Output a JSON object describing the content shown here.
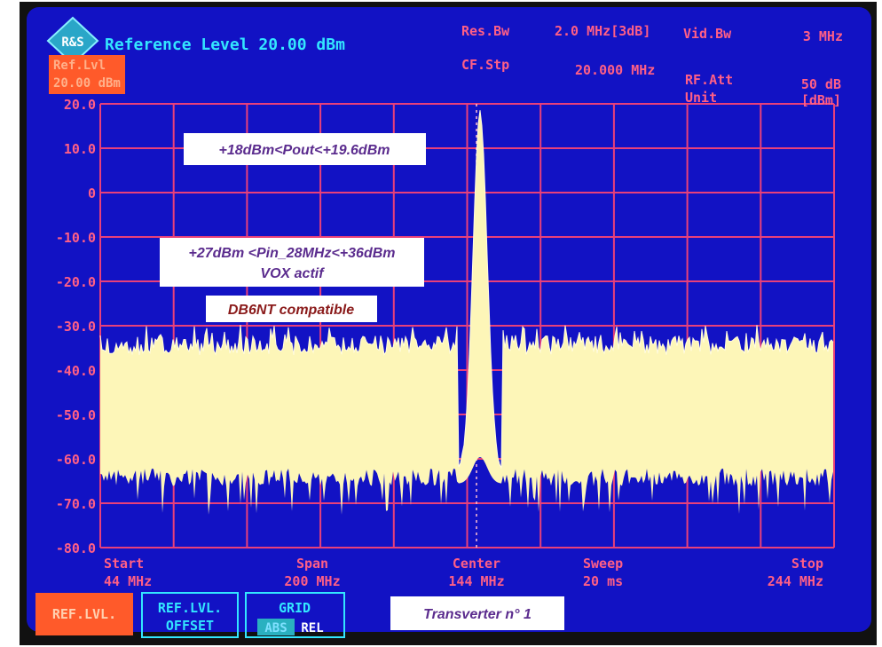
{
  "header": {
    "reference_level": "Reference Level 20.00 dBm",
    "ref_lvl_box": [
      "Ref.Lvl",
      "20.00 dBm"
    ],
    "settings": [
      {
        "label": "Res.Bw",
        "value": "2.0 MHz[3dB]"
      },
      {
        "label": "Vid.Bw",
        "value": "3 MHz"
      },
      {
        "label": "CF.Stp",
        "value": "20.000 MHz"
      },
      {
        "label": "RF.Att",
        "value": "50 dB"
      },
      {
        "label": "Unit",
        "value": "[dBm]"
      }
    ]
  },
  "y_axis_labels": [
    "20.0",
    "10.0",
    "0",
    "-10.0",
    "-20.0",
    "-30.0",
    "-40.0",
    "-50.0",
    "-60.0",
    "-70.0",
    "-80.0"
  ],
  "footer": [
    {
      "label": "Start",
      "value": "44 MHz"
    },
    {
      "label": "Span",
      "value": "200 MHz"
    },
    {
      "label": "Center",
      "value": "144 MHz"
    },
    {
      "label": "Sweep",
      "value": "20 ms"
    },
    {
      "label": "Stop",
      "value": "244 MHz"
    }
  ],
  "softkeys": {
    "ref_lvl": "REF.LVL.",
    "ref_lvl_offset": [
      "REF.LVL.",
      "OFFSET"
    ],
    "grid": {
      "title": "GRID",
      "abs": "ABS",
      "rel": "REL"
    }
  },
  "annotations": {
    "pout": "+18dBm<Pout<+19.6dBm",
    "pin": [
      "+27dBm <Pin_28MHz<+36dBm",
      "VOX actif"
    ],
    "compat": "DB6NT compatible",
    "transverter": "Transverter n° 1"
  }
}
